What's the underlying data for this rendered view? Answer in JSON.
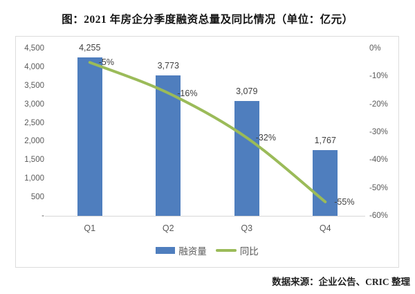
{
  "title": "图：2021 年房企分季度融资总量及同比情况（单位：亿元）",
  "source": "数据来源：企业公告、CRIC 整理",
  "legend": {
    "bar_label": "融资量",
    "line_label": "同比"
  },
  "colors": {
    "bar": "#4f7ebe",
    "line": "#9bbb59",
    "axis_text": "#595959",
    "label_text": "#3f3f3f",
    "border": "#dcdcdc",
    "baseline": "#d6d6d6"
  },
  "chart_data": {
    "type": "bar",
    "combo": "bar+line",
    "title": "图：2021 年房企分季度融资总量及同比情况（单位：亿元）",
    "categories": [
      "Q1",
      "Q2",
      "Q3",
      "Q4"
    ],
    "series": [
      {
        "name": "融资量",
        "type": "bar",
        "axis": "left",
        "values": [
          4255,
          3773,
          3079,
          1767
        ],
        "labels": [
          "4,255",
          "3,773",
          "3,079",
          "1,767"
        ]
      },
      {
        "name": "同比",
        "type": "line",
        "axis": "right",
        "values": [
          -5,
          -16,
          -32,
          -55
        ],
        "labels": [
          "-5%",
          "-16%",
          "-32%",
          "-55%"
        ]
      }
    ],
    "left_axis": {
      "min": 0,
      "max": 4500,
      "step": 500,
      "ticks": [
        "4,500",
        "4,000",
        "3,500",
        "3,000",
        "2,500",
        "2,000",
        "1,500",
        "1,000",
        "500",
        "-"
      ]
    },
    "right_axis": {
      "min": -60,
      "max": 0,
      "step": 10,
      "ticks": [
        "0%",
        "-10%",
        "-20%",
        "-30%",
        "-40%",
        "-50%",
        "-60%"
      ]
    },
    "grid": false,
    "legend_position": "bottom"
  }
}
